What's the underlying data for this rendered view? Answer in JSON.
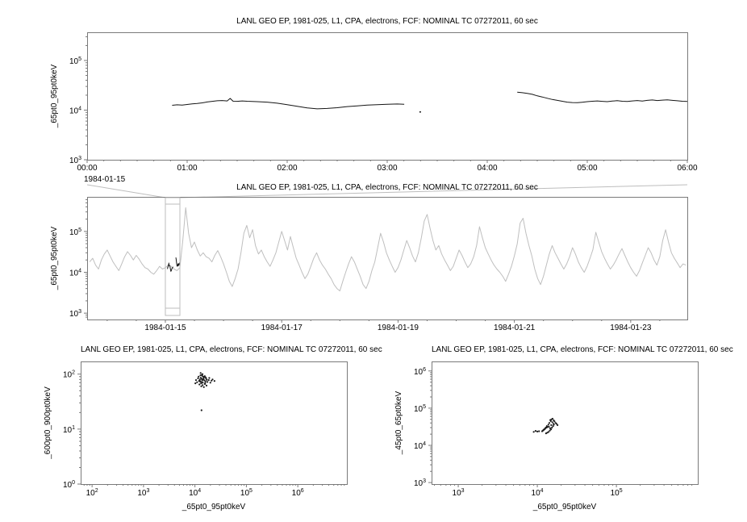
{
  "colors": {
    "background": "#ffffff",
    "frame": "#7a7a7a",
    "tick_text": "#000000",
    "series_primary": "#151515",
    "series_context": "#bfbfbf",
    "overlay": "#151515",
    "scatter": "#1c1c1c",
    "connector": "#bdbdbd"
  },
  "chart_data": [
    {
      "id": "ts-zoom",
      "type": "line",
      "title": "LANL GEO EP, 1981-025, L1, CPA, electrons, FCF: NOMINAL TC 07272011, 60 sec",
      "ylabel": "_65pt0_95pt0keV",
      "xlabel": "",
      "x_axis": {
        "scale": "linear",
        "min": 0,
        "max": 6,
        "context_label": "1984-01-15",
        "major_ticks": [
          0,
          1,
          2,
          3,
          4,
          5,
          6
        ],
        "tick_labels": [
          "00:00",
          "01:00",
          "02:00",
          "03:00",
          "04:00",
          "05:00",
          "06:00"
        ],
        "minor_step": 0.166667
      },
      "y_axis": {
        "scale": "log",
        "min": 1000,
        "max": 370000,
        "tick_exponents": [
          3,
          4,
          5
        ]
      },
      "series": [
        {
          "name": "_65pt0_95pt0keV",
          "color_key": "series_primary",
          "segments": [
            [
              [
                0.85,
                12500
              ],
              [
                0.9,
                12800
              ],
              [
                0.95,
                12600
              ],
              [
                1,
                13000
              ],
              [
                1.05,
                13400
              ],
              [
                1.1,
                13600
              ],
              [
                1.15,
                14000
              ],
              [
                1.2,
                14600
              ],
              [
                1.25,
                15000
              ],
              [
                1.3,
                15400
              ],
              [
                1.35,
                15600
              ],
              [
                1.4,
                15300
              ],
              [
                1.43,
                17200
              ],
              [
                1.46,
                15100
              ],
              [
                1.5,
                15000
              ],
              [
                1.55,
                15300
              ],
              [
                1.6,
                15100
              ],
              [
                1.7,
                14800
              ],
              [
                1.8,
                14500
              ],
              [
                1.9,
                13800
              ],
              [
                2,
                12900
              ],
              [
                2.1,
                11900
              ],
              [
                2.2,
                11100
              ],
              [
                2.3,
                10600
              ],
              [
                2.4,
                10800
              ],
              [
                2.5,
                11200
              ],
              [
                2.6,
                11800
              ],
              [
                2.7,
                12200
              ],
              [
                2.8,
                12600
              ],
              [
                2.9,
                12900
              ],
              [
                3,
                13100
              ],
              [
                3.1,
                13300
              ],
              [
                3.17,
                13100
              ]
            ],
            [
              [
                3.33,
                9200
              ]
            ],
            [
              [
                4.3,
                23000
              ],
              [
                4.35,
                22400
              ],
              [
                4.4,
                21800
              ],
              [
                4.45,
                20800
              ],
              [
                4.5,
                19400
              ],
              [
                4.55,
                18400
              ],
              [
                4.6,
                17300
              ],
              [
                4.65,
                16400
              ],
              [
                4.7,
                15700
              ],
              [
                4.75,
                15100
              ],
              [
                4.8,
                14500
              ],
              [
                4.85,
                14200
              ],
              [
                4.9,
                14100
              ],
              [
                4.95,
                14400
              ],
              [
                5,
                14800
              ],
              [
                5.05,
                15100
              ],
              [
                5.1,
                15300
              ],
              [
                5.15,
                15000
              ],
              [
                5.2,
                14800
              ],
              [
                5.25,
                15200
              ],
              [
                5.3,
                15500
              ],
              [
                5.35,
                15100
              ],
              [
                5.4,
                14900
              ],
              [
                5.45,
                15300
              ],
              [
                5.5,
                15600
              ],
              [
                5.55,
                15200
              ],
              [
                5.6,
                15700
              ],
              [
                5.65,
                16000
              ],
              [
                5.7,
                15600
              ],
              [
                5.75,
                15900
              ],
              [
                5.8,
                16100
              ],
              [
                5.85,
                15700
              ],
              [
                5.9,
                15400
              ],
              [
                5.95,
                15100
              ],
              [
                6,
                14900
              ]
            ]
          ]
        }
      ]
    },
    {
      "id": "ts-context",
      "type": "line",
      "title": "LANL GEO EP, 1981-025, L1, CPA, electrons, FCF: NOMINAL TC 07272011, 60 sec",
      "ylabel": "_65pt0_95pt0keV",
      "xlabel": "",
      "x_axis": {
        "scale": "linear",
        "min": 13.655,
        "max": 23.973,
        "major_ticks": [
          15,
          17,
          19,
          21,
          23
        ],
        "tick_labels": [
          "1984-01-15",
          "1984-01-17",
          "1984-01-19",
          "1984-01-21",
          "1984-01-23"
        ],
        "minor_step": 0.5
      },
      "y_axis": {
        "scale": "log",
        "min": 700,
        "max": 700000,
        "tick_exponents": [
          3,
          4,
          5
        ]
      },
      "series": [
        {
          "name": "_65pt0_95pt0keV",
          "color_key": "series_context",
          "x0": 13.7,
          "dx": 0.05,
          "scale": 1000,
          "values": [
            18,
            22,
            15,
            12,
            20,
            28,
            35,
            25,
            18,
            14,
            11,
            16,
            24,
            32,
            26,
            20,
            26,
            21,
            16,
            13,
            12,
            10,
            9,
            11,
            14,
            12,
            13,
            15,
            14,
            12,
            11,
            13,
            60,
            380,
            90,
            40,
            55,
            35,
            25,
            30,
            24,
            22,
            18,
            26,
            34,
            24,
            16,
            10,
            6,
            4.5,
            7,
            12,
            30,
            90,
            140,
            70,
            110,
            45,
            28,
            35,
            24,
            18,
            14,
            20,
            30,
            55,
            100,
            60,
            35,
            75,
            40,
            22,
            15,
            10,
            7,
            9,
            14,
            22,
            30,
            20,
            15,
            12,
            9,
            7,
            5,
            4,
            3.5,
            6,
            10,
            16,
            24,
            18,
            12,
            8,
            5,
            4,
            6,
            11,
            18,
            40,
            90,
            55,
            30,
            20,
            14,
            10,
            13,
            20,
            35,
            60,
            40,
            25,
            18,
            30,
            70,
            180,
            260,
            120,
            60,
            35,
            45,
            28,
            20,
            15,
            11,
            14,
            22,
            35,
            26,
            18,
            13,
            16,
            24,
            45,
            130,
            70,
            40,
            28,
            20,
            15,
            12,
            10,
            8,
            6,
            9,
            14,
            25,
            50,
            160,
            210,
            90,
            45,
            25,
            12,
            7,
            5,
            8,
            15,
            28,
            45,
            30,
            22,
            16,
            12,
            16,
            24,
            40,
            28,
            18,
            13,
            10,
            14,
            22,
            36,
            95,
            55,
            32,
            22,
            16,
            12,
            15,
            20,
            28,
            38,
            26,
            18,
            13,
            10,
            8,
            11,
            17,
            26,
            40,
            30,
            20,
            15,
            24,
            60,
            110,
            55,
            30,
            22,
            17,
            13,
            16,
            15
          ]
        }
      ],
      "selection": {
        "from": 15.0,
        "to": 15.25,
        "linked_to": "ts-zoom"
      },
      "overlay": {
        "source_index": 0,
        "x_offset": 15,
        "x_scale": 0.0416667,
        "color_key": "overlay"
      }
    },
    {
      "id": "scatter-left",
      "type": "scatter",
      "title": "LANL GEO EP, 1981-025, L1, CPA, electrons, FCF: NOMINAL TC 07272011, 60 sec",
      "xlabel": "_65pt0_95pt0keV",
      "ylabel": "_600pt0_900pt0keV",
      "x_axis": {
        "scale": "log",
        "min": 60,
        "max": 9000000,
        "tick_exponents": [
          2,
          3,
          4,
          5,
          6
        ]
      },
      "y_axis": {
        "scale": "log",
        "min": 1,
        "max": 170,
        "tick_exponents": [
          0,
          1,
          2
        ]
      },
      "color_key": "scatter",
      "points": [
        [
          12000,
          75
        ],
        [
          13500,
          82
        ],
        [
          14200,
          70
        ],
        [
          15000,
          88
        ],
        [
          12800,
          95
        ],
        [
          13900,
          78
        ],
        [
          16000,
          74
        ],
        [
          14800,
          85
        ],
        [
          13200,
          68
        ],
        [
          12500,
          80
        ],
        [
          15500,
          92
        ],
        [
          17000,
          79
        ],
        [
          14000,
          100
        ],
        [
          13600,
          72
        ],
        [
          12200,
          65
        ],
        [
          16500,
          83
        ],
        [
          15200,
          77
        ],
        [
          14400,
          90
        ],
        [
          13000,
          86
        ],
        [
          12700,
          73
        ],
        [
          15800,
          69
        ],
        [
          14600,
          81
        ],
        [
          13800,
          94
        ],
        [
          12400,
          76
        ],
        [
          16200,
          87
        ],
        [
          17500,
          72
        ],
        [
          18500,
          78
        ],
        [
          20000,
          70
        ],
        [
          11500,
          84
        ],
        [
          11000,
          71
        ],
        [
          10500,
          78
        ],
        [
          13300,
          60
        ],
        [
          14100,
          63
        ],
        [
          15600,
          66
        ],
        [
          19000,
          85
        ],
        [
          21000,
          76
        ],
        [
          12900,
          105
        ],
        [
          13700,
          98
        ],
        [
          14900,
          58
        ],
        [
          16800,
          62
        ],
        [
          22000,
          80
        ],
        [
          10200,
          68
        ],
        [
          11800,
          90
        ],
        [
          24000,
          75
        ],
        [
          13400,
          22
        ]
      ]
    },
    {
      "id": "scatter-right",
      "type": "scatter",
      "title": "LANL GEO EP, 1981-025, L1, CPA, electrons, FCF: NOMINAL TC 07272011, 60 sec",
      "xlabel": "_65pt0_95pt0keV",
      "ylabel": "_45pt0_65pt0keV",
      "x_axis": {
        "scale": "log",
        "min": 460,
        "max": 1070000,
        "tick_exponents": [
          3,
          4,
          5
        ]
      },
      "y_axis": {
        "scale": "log",
        "min": 910,
        "max": 1800000,
        "tick_exponents": [
          3,
          4,
          5,
          6
        ]
      },
      "color_key": "scatter",
      "points": [
        [
          13000,
          30000
        ],
        [
          14000,
          32000
        ],
        [
          12500,
          28000
        ],
        [
          15000,
          35000
        ],
        [
          13500,
          31000
        ],
        [
          14500,
          29000
        ],
        [
          12000,
          26000
        ],
        [
          16000,
          38000
        ],
        [
          15500,
          42000
        ],
        [
          14800,
          45000
        ],
        [
          14200,
          40000
        ],
        [
          13800,
          36000
        ],
        [
          13200,
          33000
        ],
        [
          12800,
          30000
        ],
        [
          12300,
          27000
        ],
        [
          11800,
          25000
        ],
        [
          11500,
          24000
        ],
        [
          12100,
          26500
        ],
        [
          12600,
          28500
        ],
        [
          13100,
          30500
        ],
        [
          16500,
          44000
        ],
        [
          17000,
          40000
        ],
        [
          16200,
          36000
        ],
        [
          15800,
          33000
        ],
        [
          15300,
          30000
        ],
        [
          14900,
          27000
        ],
        [
          14400,
          25000
        ],
        [
          13900,
          23000
        ],
        [
          13400,
          22000
        ],
        [
          12900,
          21000
        ],
        [
          10500,
          24000
        ],
        [
          10000,
          23500
        ],
        [
          9500,
          24500
        ],
        [
          9000,
          23000
        ],
        [
          17500,
          38000
        ],
        [
          18000,
          35000
        ],
        [
          15100,
          50000
        ],
        [
          14600,
          48000
        ],
        [
          15600,
          52000
        ],
        [
          16100,
          47000
        ]
      ]
    }
  ]
}
